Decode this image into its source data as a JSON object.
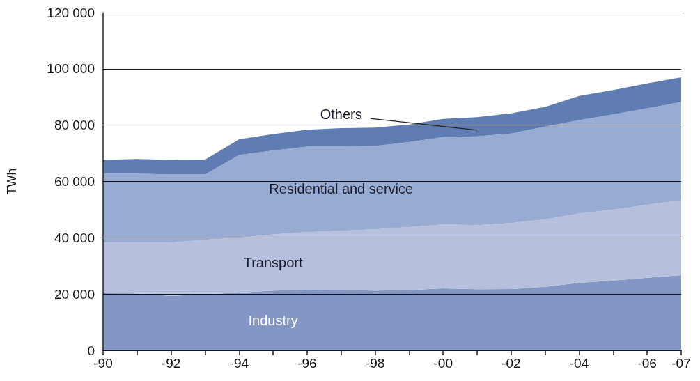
{
  "chart_data": {
    "type": "area",
    "stacked": true,
    "ylabel": "TWh",
    "categories": [
      "-90",
      null,
      "-92",
      null,
      "-94",
      null,
      "-96",
      null,
      "-98",
      null,
      "-00",
      null,
      "-02",
      null,
      "-04",
      null,
      "-06",
      "-07"
    ],
    "series": [
      {
        "name": "Industry",
        "color": "#8497c4",
        "values": [
          20300,
          20200,
          19300,
          20000,
          20500,
          21200,
          21500,
          21400,
          21200,
          21400,
          22000,
          21700,
          21800,
          22600,
          24000,
          24800,
          25800,
          26700
        ]
      },
      {
        "name": "Transport",
        "color": "#b6c0dd",
        "values": [
          18000,
          18100,
          19000,
          19300,
          19500,
          20000,
          20500,
          21100,
          21800,
          22400,
          22700,
          22800,
          23400,
          23900,
          24600,
          25200,
          25900,
          26600
        ]
      },
      {
        "name": "Residential and service",
        "color": "#98acd3",
        "values": [
          24500,
          24500,
          24200,
          23200,
          29400,
          29800,
          30400,
          30000,
          29600,
          30200,
          31100,
          31500,
          31800,
          33000,
          33200,
          33800,
          34300,
          34900
        ]
      },
      {
        "name": "Others",
        "color": "#5f7db3",
        "values": [
          4900,
          5200,
          5200,
          5300,
          5600,
          5800,
          6000,
          6400,
          6500,
          6200,
          6400,
          6800,
          7200,
          7000,
          8600,
          8700,
          8800,
          8800
        ]
      }
    ],
    "ylim": [
      0,
      120000
    ],
    "yticks": [
      {
        "value": 0,
        "label": "0"
      },
      {
        "value": 20000,
        "label": "20 000"
      },
      {
        "value": 40000,
        "label": "40 000"
      },
      {
        "value": 60000,
        "label": "60 000"
      },
      {
        "value": 80000,
        "label": "80 000"
      },
      {
        "value": 100000,
        "label": "100 000"
      },
      {
        "value": 120000,
        "label": "120 000"
      }
    ],
    "grid": "y",
    "legend": false
  }
}
